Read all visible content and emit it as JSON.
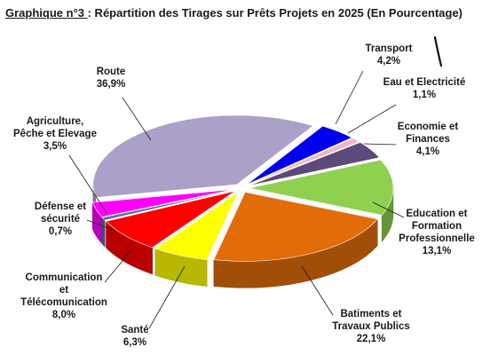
{
  "header": {
    "title_prefix": "Graphique n°3 ",
    "title_rest": ": Répartition des Tirages sur Prêts Projets en 2025 (En Pourcentage)"
  },
  "chart_data": {
    "type": "pie",
    "title": "Graphique n°3 : Répartition des Tirages sur Prêts Projets en 2025 (En Pourcentage)",
    "style": "3d-exploded",
    "legend": "none",
    "slices": [
      {
        "name": "Transport",
        "value": 4.2,
        "value_label": "4,2%",
        "color": "#0000ee",
        "label_lines": [
          "Transport"
        ]
      },
      {
        "name": "Eau et Electricité",
        "value": 1.1,
        "value_label": "1,1%",
        "color": "#f4b6c2",
        "label_lines": [
          "Eau et Electricité"
        ]
      },
      {
        "name": "Economie et Finances",
        "value": 4.1,
        "value_label": "4,1%",
        "color": "#5c4a7a",
        "label_lines": [
          "Economie et",
          "Finances"
        ]
      },
      {
        "name": "Education et Formation Professionnelle",
        "value": 13.1,
        "value_label": "13,1%",
        "color": "#8fd14f",
        "label_lines": [
          "Education et",
          "Formation",
          "Professionnelle"
        ]
      },
      {
        "name": "Batiments et Travaux Publics",
        "value": 22.1,
        "value_label": "22,1%",
        "color": "#e36c0a",
        "label_lines": [
          "Batiments et",
          "Travaux Publics"
        ]
      },
      {
        "name": "Santé",
        "value": 6.3,
        "value_label": "6,3%",
        "color": "#ffff00",
        "label_lines": [
          "Santé"
        ]
      },
      {
        "name": "Communication et Télécomunication",
        "value": 8.0,
        "value_label": "8,0%",
        "color": "#ff0000",
        "label_lines": [
          "Communication",
          "et",
          "Télécomunication"
        ]
      },
      {
        "name": "Défense et sécurité",
        "value": 0.7,
        "value_label": "0,7%",
        "color": "#5b6fa8",
        "label_lines": [
          "Défense et",
          "sécurité"
        ]
      },
      {
        "name": "Agriculture, Pêche et Elevage",
        "value": 3.5,
        "value_label": "3,5%",
        "color": "#ff00ff",
        "label_lines": [
          "Agriculture,",
          "Pêche et Elevage"
        ]
      },
      {
        "name": "Route",
        "value": 36.9,
        "value_label": "36,9%",
        "color": "#aaa0c8",
        "label_lines": [
          "Route"
        ]
      }
    ]
  }
}
